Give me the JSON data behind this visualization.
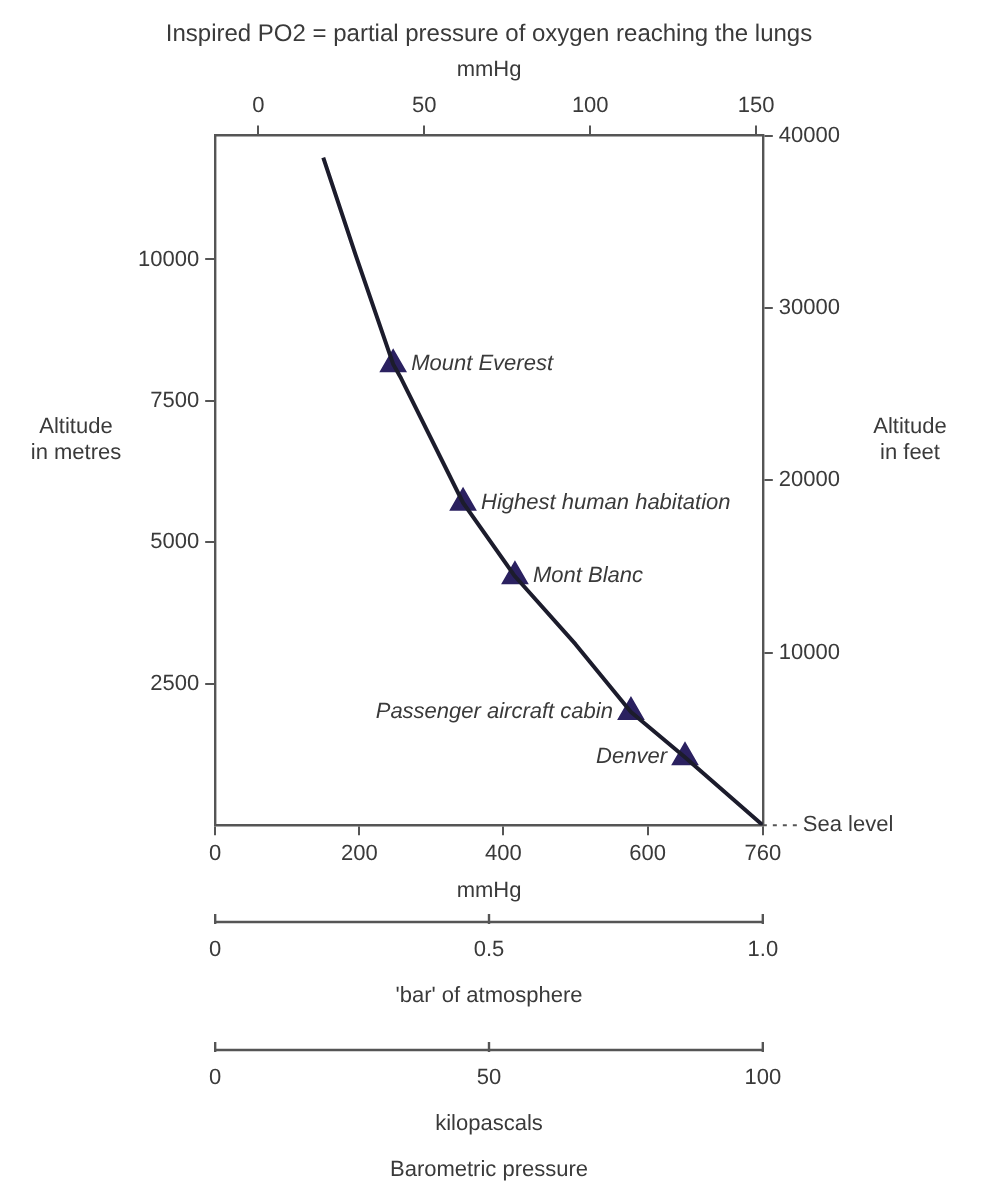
{
  "chart_data": [
    {
      "type": "line",
      "title": "Inspired PO2 = partial pressure of oxygen reaching the lungs",
      "x2label": "mmHg",
      "xlabel": "mmHg",
      "ylabel": "Altitude in metres",
      "y2label": "Altitude in feet",
      "xlim": [
        0,
        760
      ],
      "xticks": [
        0,
        200,
        400,
        600,
        760
      ],
      "x2lim": [
        -13,
        152
      ],
      "x2ticks": [
        0,
        50,
        100,
        150
      ],
      "ylim": [
        0,
        12190
      ],
      "yticks": [
        2500,
        5000,
        7500,
        10000
      ],
      "y2lim": [
        0,
        40000
      ],
      "y2ticks": [
        10000,
        20000,
        30000,
        40000
      ],
      "series": [
        {
          "color": "#1c1c2c",
          "line_style": "solid",
          "x": [
            150,
            197,
            247,
            258,
            344,
            416,
            500,
            577,
            652,
            760
          ],
          "values": [
            11800,
            10000,
            8150,
            7900,
            5700,
            4400,
            3200,
            2000,
            1200,
            0
          ]
        },
        {
          "type": "scatter",
          "marker": "triangle",
          "color": "#2b2160",
          "x": [
            247,
            344,
            416,
            577,
            652
          ],
          "values": [
            8150,
            5700,
            4400,
            2000,
            1200
          ]
        }
      ],
      "ref_lines": [
        {
          "axis": "y",
          "value": 0,
          "label": "Sea level",
          "line_style": "dotted"
        }
      ],
      "annotations": [
        {
          "text": "Mount Everest",
          "x": 247,
          "y": 8150
        },
        {
          "text": "Highest human habitation",
          "x": 344,
          "y": 5700
        },
        {
          "text": "Mont Blanc",
          "x": 416,
          "y": 4400
        },
        {
          "text": "Passenger aircraft cabin",
          "x": 577,
          "y": 2000
        },
        {
          "text": "Denver",
          "x": 652,
          "y": 1200
        }
      ],
      "grid": false,
      "legend": false
    },
    {
      "type": "other",
      "xlabel": "'bar' of atmosphere",
      "annotations": [
        "0",
        "0.5",
        "1.0"
      ]
    },
    {
      "type": "other",
      "xlabel": "kilopascals",
      "annotations": [
        "0",
        "50",
        "100"
      ],
      "title": "Barometric pressure"
    }
  ]
}
